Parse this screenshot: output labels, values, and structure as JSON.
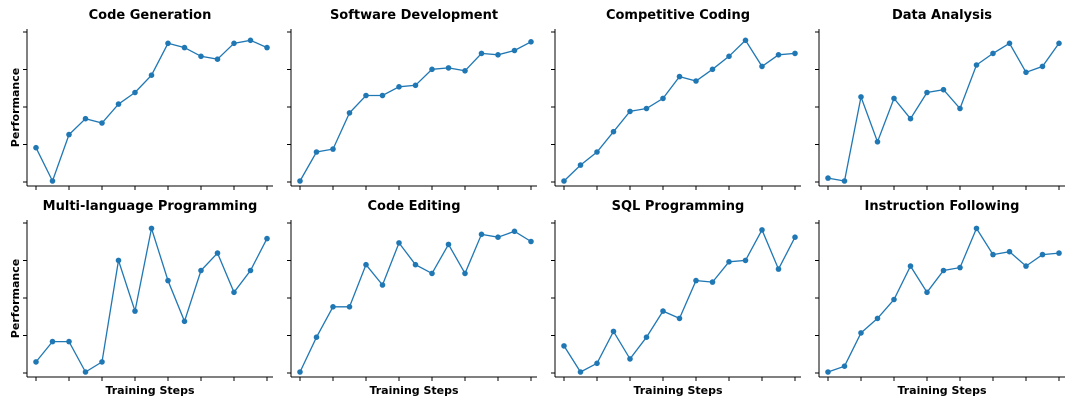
{
  "figure": {
    "ylabel": "Performance",
    "xlabel": "Training Steps",
    "line_color": "#1f77b4",
    "axis_color": "#000000"
  },
  "chart_data": [
    {
      "type": "line",
      "title": "Code Generation",
      "xlabel": "",
      "ylabel": "Performance",
      "values": [
        0.23,
        0.0,
        0.32,
        0.43,
        0.4,
        0.53,
        0.61,
        0.73,
        0.95,
        0.92,
        0.86,
        0.84,
        0.95,
        0.97,
        0.92
      ]
    },
    {
      "type": "line",
      "title": "Software Development",
      "xlabel": "",
      "ylabel": "",
      "values": [
        0.0,
        0.2,
        0.22,
        0.47,
        0.59,
        0.59,
        0.65,
        0.66,
        0.77,
        0.78,
        0.76,
        0.88,
        0.87,
        0.9,
        0.96
      ]
    },
    {
      "type": "line",
      "title": "Competitive Coding",
      "xlabel": "",
      "ylabel": "",
      "values": [
        0.0,
        0.11,
        0.2,
        0.34,
        0.48,
        0.5,
        0.57,
        0.72,
        0.69,
        0.77,
        0.86,
        0.97,
        0.79,
        0.87,
        0.88
      ]
    },
    {
      "type": "line",
      "title": "Data Analysis",
      "xlabel": "",
      "ylabel": "",
      "values": [
        0.02,
        0.0,
        0.58,
        0.27,
        0.57,
        0.43,
        0.61,
        0.63,
        0.5,
        0.8,
        0.88,
        0.95,
        0.75,
        0.79,
        0.95
      ]
    },
    {
      "type": "line",
      "title": "Multi-language Programming",
      "xlabel": "Training Steps",
      "ylabel": "Performance",
      "values": [
        0.07,
        0.21,
        0.21,
        0.0,
        0.07,
        0.77,
        0.42,
        0.99,
        0.63,
        0.35,
        0.7,
        0.82,
        0.55,
        0.7,
        0.92
      ]
    },
    {
      "type": "line",
      "title": "Code Editing",
      "xlabel": "Training Steps",
      "ylabel": "",
      "values": [
        0.0,
        0.24,
        0.45,
        0.45,
        0.74,
        0.6,
        0.89,
        0.74,
        0.68,
        0.88,
        0.68,
        0.95,
        0.93,
        0.97,
        0.9
      ]
    },
    {
      "type": "line",
      "title": "SQL Programming",
      "xlabel": "Training Steps",
      "ylabel": "",
      "values": [
        0.18,
        0.0,
        0.06,
        0.28,
        0.09,
        0.24,
        0.42,
        0.37,
        0.63,
        0.62,
        0.76,
        0.77,
        0.98,
        0.71,
        0.93
      ]
    },
    {
      "type": "line",
      "title": "Instruction Following",
      "xlabel": "Training Steps",
      "ylabel": "",
      "values": [
        0.0,
        0.04,
        0.27,
        0.37,
        0.5,
        0.73,
        0.55,
        0.7,
        0.72,
        0.99,
        0.81,
        0.83,
        0.73,
        0.81,
        0.82
      ]
    }
  ]
}
